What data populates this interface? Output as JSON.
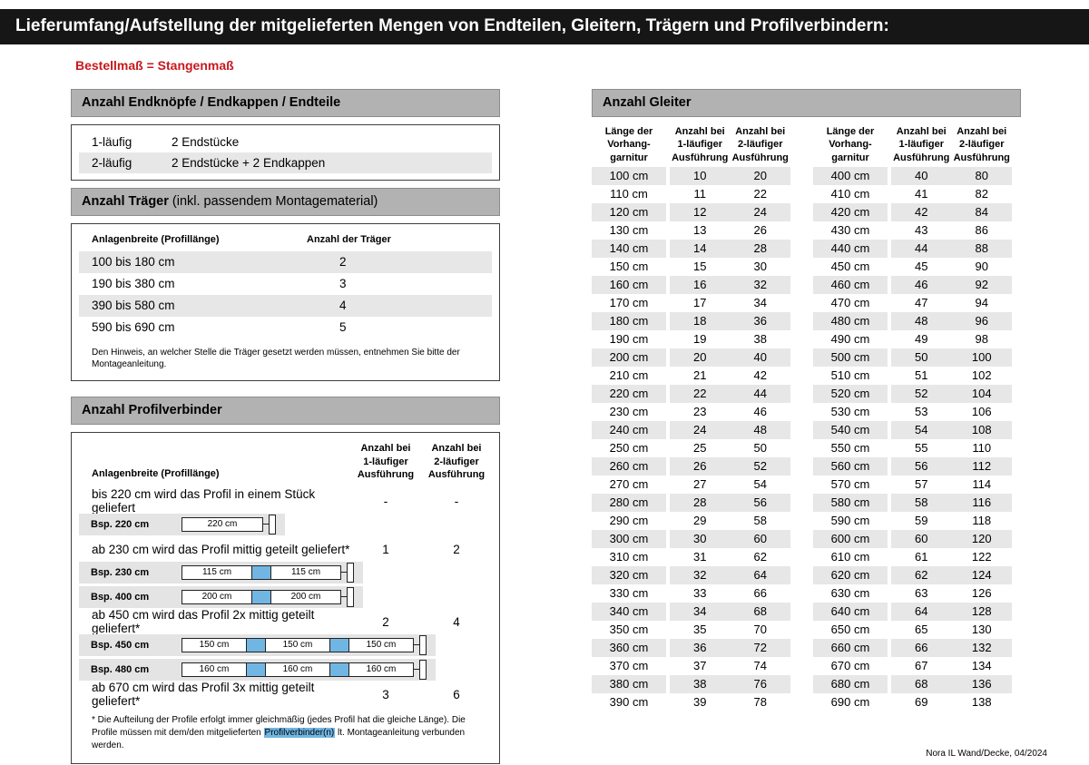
{
  "page": {
    "title": "Lieferumfang/Aufstellung der mitgelieferten Mengen von Endteilen, Gleitern, Trägern und Profilverbindern:",
    "subtitle": "Bestellmaß = Stangenmaß",
    "footer": "Nora IL Wand/Decke, 04/2024"
  },
  "colors": {
    "title_bar_bg": "#161616",
    "accent_red": "#c8181e",
    "section_header_gray": "#b2b2b2",
    "row_stripe_gray": "#e7e7e7",
    "connector_blue": "#71b6e3"
  },
  "endteile": {
    "header": "Anzahl Endknöpfe / Endkappen / Endteile",
    "rows": [
      {
        "type": "1-läufig",
        "value": "2 Endstücke"
      },
      {
        "type": "2-läufig",
        "value": "2 Endstücke + 2 Endkappen"
      }
    ]
  },
  "traeger": {
    "title_bold": "Anzahl Träger",
    "title_light": " (inkl. passendem Montagematerial)",
    "col1": "Anlagenbreite (Profillänge)",
    "col2": "Anzahl der Träger",
    "rows": [
      {
        "range": "100 bis 180 cm",
        "count": "2"
      },
      {
        "range": "190 bis 380 cm",
        "count": "3"
      },
      {
        "range": "390 bis 580 cm",
        "count": "4"
      },
      {
        "range": "590 bis 690 cm",
        "count": "5"
      }
    ],
    "note": "Den Hinweis, an welcher Stelle die Träger gesetzt werden müssen, entnehmen Sie bitte der Montageanleitung."
  },
  "profilverbinder": {
    "header": "Anzahl Profilverbinder",
    "col_left": "Anlagenbreite (Profillänge)",
    "col_one": "Anzahl bei\n1-läufiger\nAusführung",
    "col_two": "Anzahl bei\n2-läufiger\nAusführung",
    "rows": [
      {
        "text": "bis 220 cm wird das Profil in einem Stück geliefert",
        "v1": "-",
        "v2": "-",
        "diagrams": [
          {
            "label": "Bsp. 220 cm",
            "segments": [
              "220 cm"
            ]
          }
        ]
      },
      {
        "text": "ab 230 cm wird das Profil mittig geteilt geliefert*",
        "v1": "1",
        "v2": "2",
        "diagrams": [
          {
            "label": "Bsp. 230 cm",
            "segments": [
              "115 cm",
              "115 cm"
            ]
          },
          {
            "label": "Bsp. 400 cm",
            "segments": [
              "200 cm",
              "200 cm"
            ]
          }
        ]
      },
      {
        "text": "ab 450 cm wird das Profil 2x mittig geteilt geliefert*",
        "v1": "2",
        "v2": "4",
        "diagrams": [
          {
            "label": "Bsp. 450 cm",
            "segments": [
              "150 cm",
              "150 cm",
              "150 cm"
            ]
          },
          {
            "label": "Bsp. 480 cm",
            "segments": [
              "160 cm",
              "160 cm",
              "160 cm"
            ]
          }
        ]
      },
      {
        "text": "ab 670 cm wird das Profil 3x mittig geteilt geliefert*",
        "v1": "3",
        "v2": "6",
        "diagrams": []
      }
    ],
    "footnote_pre": "* Die Aufteilung der Profile erfolgt immer gleichmäßig (jedes Profil hat die gleiche Länge). Die Profile müssen mit dem/den mitgelieferten ",
    "footnote_highlight": "Profilverbinder(n)",
    "footnote_post": " lt. Montageanleitung verbunden werden."
  },
  "gleiter": {
    "header": "Anzahl Gleiter",
    "col_length": "Länge der\nVorhang-\ngarnitur",
    "col_one": "Anzahl bei\n1-läufiger\nAusführung",
    "col_two": "Anzahl bei\n2-läufiger\nAusführung",
    "table1": {
      "rows": [
        [
          "100 cm",
          "10",
          "20"
        ],
        [
          "110 cm",
          "11",
          "22"
        ],
        [
          "120 cm",
          "12",
          "24"
        ],
        [
          "130 cm",
          "13",
          "26"
        ],
        [
          "140 cm",
          "14",
          "28"
        ],
        [
          "150 cm",
          "15",
          "30"
        ],
        [
          "160 cm",
          "16",
          "32"
        ],
        [
          "170 cm",
          "17",
          "34"
        ],
        [
          "180 cm",
          "18",
          "36"
        ],
        [
          "190 cm",
          "19",
          "38"
        ],
        [
          "200 cm",
          "20",
          "40"
        ],
        [
          "210 cm",
          "21",
          "42"
        ],
        [
          "220 cm",
          "22",
          "44"
        ],
        [
          "230 cm",
          "23",
          "46"
        ],
        [
          "240 cm",
          "24",
          "48"
        ],
        [
          "250 cm",
          "25",
          "50"
        ],
        [
          "260 cm",
          "26",
          "52"
        ],
        [
          "270 cm",
          "27",
          "54"
        ],
        [
          "280 cm",
          "28",
          "56"
        ],
        [
          "290 cm",
          "29",
          "58"
        ],
        [
          "300 cm",
          "30",
          "60"
        ],
        [
          "310 cm",
          "31",
          "62"
        ],
        [
          "320 cm",
          "32",
          "64"
        ],
        [
          "330 cm",
          "33",
          "66"
        ],
        [
          "340 cm",
          "34",
          "68"
        ],
        [
          "350 cm",
          "35",
          "70"
        ],
        [
          "360 cm",
          "36",
          "72"
        ],
        [
          "370 cm",
          "37",
          "74"
        ],
        [
          "380 cm",
          "38",
          "76"
        ],
        [
          "390 cm",
          "39",
          "78"
        ]
      ]
    },
    "table2": {
      "rows": [
        [
          "400 cm",
          "40",
          "80"
        ],
        [
          "410 cm",
          "41",
          "82"
        ],
        [
          "420 cm",
          "42",
          "84"
        ],
        [
          "430 cm",
          "43",
          "86"
        ],
        [
          "440 cm",
          "44",
          "88"
        ],
        [
          "450 cm",
          "45",
          "90"
        ],
        [
          "460 cm",
          "46",
          "92"
        ],
        [
          "470 cm",
          "47",
          "94"
        ],
        [
          "480 cm",
          "48",
          "96"
        ],
        [
          "490 cm",
          "49",
          "98"
        ],
        [
          "500 cm",
          "50",
          "100"
        ],
        [
          "510 cm",
          "51",
          "102"
        ],
        [
          "520 cm",
          "52",
          "104"
        ],
        [
          "530 cm",
          "53",
          "106"
        ],
        [
          "540 cm",
          "54",
          "108"
        ],
        [
          "550 cm",
          "55",
          "110"
        ],
        [
          "560 cm",
          "56",
          "112"
        ],
        [
          "570 cm",
          "57",
          "114"
        ],
        [
          "580 cm",
          "58",
          "116"
        ],
        [
          "590 cm",
          "59",
          "118"
        ],
        [
          "600 cm",
          "60",
          "120"
        ],
        [
          "610 cm",
          "61",
          "122"
        ],
        [
          "620 cm",
          "62",
          "124"
        ],
        [
          "630 cm",
          "63",
          "126"
        ],
        [
          "640 cm",
          "64",
          "128"
        ],
        [
          "650 cm",
          "65",
          "130"
        ],
        [
          "660 cm",
          "66",
          "132"
        ],
        [
          "670 cm",
          "67",
          "134"
        ],
        [
          "680 cm",
          "68",
          "136"
        ],
        [
          "690 cm",
          "69",
          "138"
        ]
      ]
    }
  }
}
